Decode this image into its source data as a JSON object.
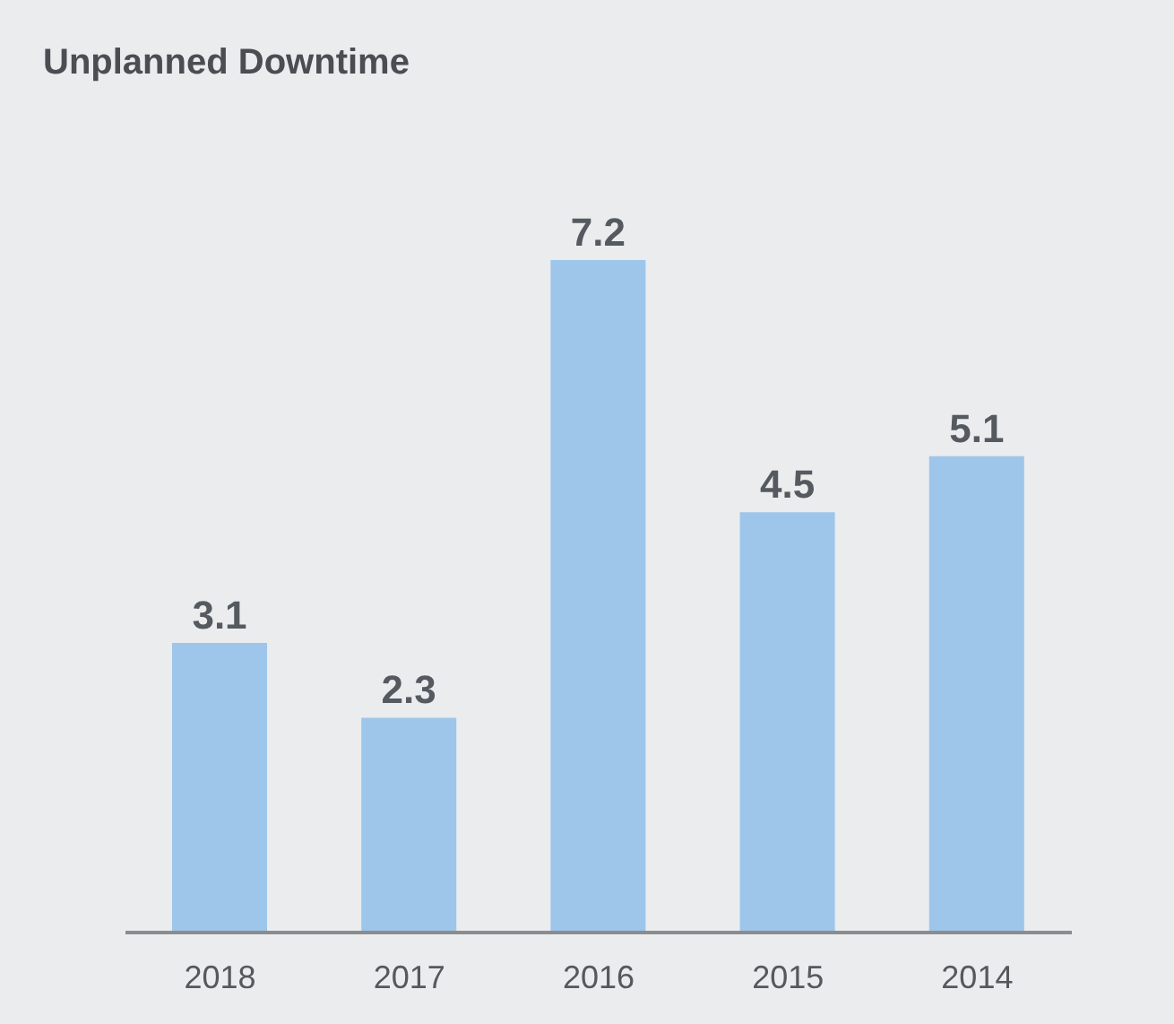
{
  "chart_data": {
    "type": "bar",
    "title": "Unplanned Downtime",
    "categories": [
      "2018",
      "2017",
      "2016",
      "2015",
      "2014"
    ],
    "values": [
      3.1,
      2.3,
      7.2,
      4.5,
      5.1
    ],
    "color": "#9dc6ea",
    "data_labels": true
  }
}
